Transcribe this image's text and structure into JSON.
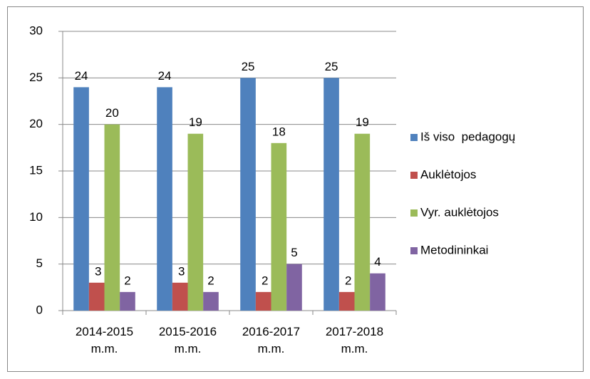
{
  "chart_data": {
    "type": "bar",
    "categories": [
      "2014-2015\nm.m.",
      "2015-2016\nm.m.",
      "2016-2017\nm.m.",
      "2017-2018\nm.m."
    ],
    "series": [
      {
        "name": "Iš viso  pedagogų",
        "color": "#4f81bd",
        "values": [
          24,
          24,
          25,
          25
        ]
      },
      {
        "name": "Auklėtojos",
        "color": "#c0504d",
        "values": [
          3,
          3,
          2,
          2
        ]
      },
      {
        "name": "Vyr. auklėtojos",
        "color": "#9bbb59",
        "values": [
          20,
          19,
          18,
          19
        ]
      },
      {
        "name": "Metodininkai",
        "color": "#8064a2",
        "values": [
          2,
          2,
          5,
          4
        ]
      }
    ],
    "ylim": [
      0,
      30
    ],
    "yticks": [
      0,
      5,
      10,
      15,
      20,
      25,
      30
    ],
    "grid": true,
    "legend": "right"
  }
}
